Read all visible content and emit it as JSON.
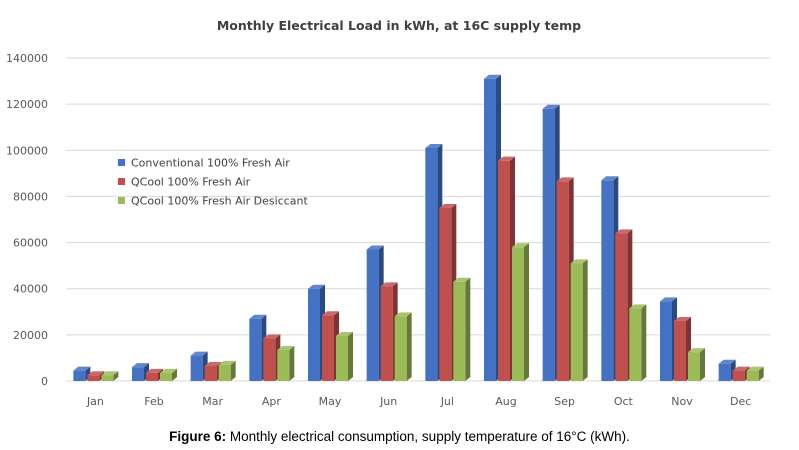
{
  "chart_data": {
    "type": "bar",
    "title": "Monthly Electrical Load in kWh, at 16C supply temp",
    "categories": [
      "Jan",
      "Feb",
      "Mar",
      "Apr",
      "May",
      "Jun",
      "Jul",
      "Aug",
      "Sep",
      "Oct",
      "Nov",
      "Dec"
    ],
    "series": [
      {
        "name": "Conventional 100% Fresh Air",
        "color": "#4472C4",
        "values": [
          4500,
          6000,
          11000,
          27000,
          40000,
          57000,
          101000,
          131000,
          118000,
          87000,
          34500,
          7500
        ]
      },
      {
        "name": "QCool 100% Fresh Air",
        "color": "#C0504D",
        "values": [
          2500,
          3500,
          6500,
          18500,
          28500,
          41000,
          75000,
          95500,
          86500,
          64000,
          26000,
          4500
        ]
      },
      {
        "name": "QCool 100% Fresh Air Desiccant",
        "color": "#9BBB59",
        "values": [
          2500,
          3500,
          7000,
          13500,
          19500,
          28000,
          43000,
          58000,
          51000,
          31500,
          12500,
          4500
        ]
      }
    ],
    "xlabel": "",
    "ylabel": "",
    "ylim": [
      0,
      140000
    ],
    "yticks": [
      "0",
      "20000",
      "40000",
      "60000",
      "80000",
      "100000",
      "120000",
      "140000"
    ],
    "grid": true,
    "legend": "upper-left inside plot"
  },
  "caption": {
    "label": "Figure 6:",
    "text": " Monthly electrical consumption, supply temperature of 16°C (kWh)."
  }
}
